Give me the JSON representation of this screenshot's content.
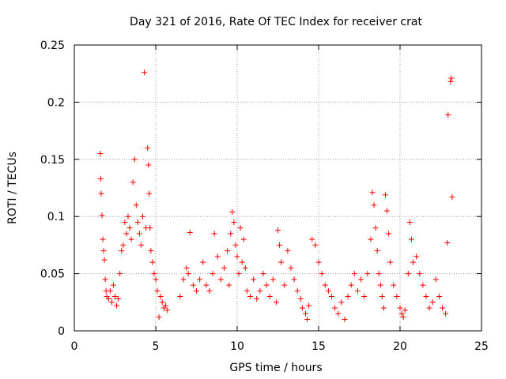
{
  "chart_data": {
    "type": "scatter",
    "title": "Day 321 of 2016, Rate Of TEC Index for receiver crat",
    "xlabel": "GPS time / hours",
    "ylabel": "ROTI / TECUs",
    "xlim": [
      0,
      25
    ],
    "ylim": [
      0,
      0.25
    ],
    "xticks": [
      "0",
      "5",
      "10",
      "15",
      "20",
      "25"
    ],
    "yticks": [
      "0",
      "0.05",
      "0.1",
      "0.15",
      "0.2",
      "0.25"
    ],
    "grid": true,
    "marker": "plus",
    "colors": {
      "marker": "#ff0000",
      "grid": "#a0a0a0",
      "axis": "#000000"
    },
    "series": [
      {
        "values": [
          [
            1.6,
            0.155
          ],
          [
            1.62,
            0.133
          ],
          [
            1.65,
            0.12
          ],
          [
            1.7,
            0.101
          ],
          [
            1.75,
            0.08
          ],
          [
            1.8,
            0.07
          ],
          [
            1.85,
            0.062
          ],
          [
            1.9,
            0.045
          ],
          [
            1.95,
            0.035
          ],
          [
            2.0,
            0.03
          ],
          [
            2.1,
            0.028
          ],
          [
            2.2,
            0.035
          ],
          [
            2.3,
            0.025
          ],
          [
            2.4,
            0.04
          ],
          [
            2.5,
            0.03
          ],
          [
            2.6,
            0.022
          ],
          [
            2.7,
            0.028
          ],
          [
            2.8,
            0.05
          ],
          [
            2.9,
            0.07
          ],
          [
            3.0,
            0.075
          ],
          [
            3.1,
            0.095
          ],
          [
            3.2,
            0.085
          ],
          [
            3.3,
            0.1
          ],
          [
            3.4,
            0.09
          ],
          [
            3.5,
            0.08
          ],
          [
            3.6,
            0.13
          ],
          [
            3.7,
            0.15
          ],
          [
            3.8,
            0.11
          ],
          [
            3.9,
            0.095
          ],
          [
            4.0,
            0.085
          ],
          [
            4.1,
            0.075
          ],
          [
            4.2,
            0.1
          ],
          [
            4.3,
            0.226
          ],
          [
            4.4,
            0.09
          ],
          [
            4.5,
            0.16
          ],
          [
            4.55,
            0.145
          ],
          [
            4.6,
            0.12
          ],
          [
            4.65,
            0.09
          ],
          [
            4.7,
            0.07
          ],
          [
            4.8,
            0.06
          ],
          [
            4.9,
            0.05
          ],
          [
            5.0,
            0.045
          ],
          [
            5.1,
            0.035
          ],
          [
            5.2,
            0.012
          ],
          [
            5.3,
            0.03
          ],
          [
            5.4,
            0.025
          ],
          [
            5.5,
            0.02
          ],
          [
            5.6,
            0.022
          ],
          [
            5.7,
            0.018
          ],
          [
            6.5,
            0.03
          ],
          [
            6.7,
            0.045
          ],
          [
            6.9,
            0.055
          ],
          [
            7.0,
            0.05
          ],
          [
            7.1,
            0.086
          ],
          [
            7.3,
            0.04
          ],
          [
            7.5,
            0.035
          ],
          [
            7.7,
            0.045
          ],
          [
            7.9,
            0.06
          ],
          [
            8.1,
            0.04
          ],
          [
            8.3,
            0.035
          ],
          [
            8.5,
            0.05
          ],
          [
            8.6,
            0.085
          ],
          [
            8.8,
            0.065
          ],
          [
            9.0,
            0.045
          ],
          [
            9.2,
            0.055
          ],
          [
            9.4,
            0.07
          ],
          [
            9.5,
            0.04
          ],
          [
            9.6,
            0.085
          ],
          [
            9.7,
            0.104
          ],
          [
            9.8,
            0.095
          ],
          [
            9.9,
            0.075
          ],
          [
            10.0,
            0.065
          ],
          [
            10.1,
            0.05
          ],
          [
            10.2,
            0.09
          ],
          [
            10.3,
            0.06
          ],
          [
            10.4,
            0.08
          ],
          [
            10.5,
            0.055
          ],
          [
            10.6,
            0.035
          ],
          [
            10.8,
            0.03
          ],
          [
            11.0,
            0.045
          ],
          [
            11.2,
            0.028
          ],
          [
            11.4,
            0.035
          ],
          [
            11.6,
            0.05
          ],
          [
            11.8,
            0.04
          ],
          [
            12.0,
            0.03
          ],
          [
            12.2,
            0.045
          ],
          [
            12.4,
            0.025
          ],
          [
            12.5,
            0.088
          ],
          [
            12.6,
            0.075
          ],
          [
            12.7,
            0.06
          ],
          [
            12.9,
            0.04
          ],
          [
            13.1,
            0.07
          ],
          [
            13.3,
            0.055
          ],
          [
            13.5,
            0.045
          ],
          [
            13.7,
            0.035
          ],
          [
            13.9,
            0.028
          ],
          [
            14.0,
            0.02
          ],
          [
            14.2,
            0.015
          ],
          [
            14.3,
            0.01
          ],
          [
            14.4,
            0.022
          ],
          [
            14.6,
            0.08
          ],
          [
            14.8,
            0.075
          ],
          [
            15.0,
            0.06
          ],
          [
            15.2,
            0.05
          ],
          [
            15.4,
            0.04
          ],
          [
            15.6,
            0.035
          ],
          [
            15.8,
            0.03
          ],
          [
            16.0,
            0.02
          ],
          [
            16.2,
            0.015
          ],
          [
            16.4,
            0.025
          ],
          [
            16.6,
            0.01
          ],
          [
            16.8,
            0.03
          ],
          [
            17.0,
            0.04
          ],
          [
            17.2,
            0.05
          ],
          [
            17.4,
            0.035
          ],
          [
            17.6,
            0.045
          ],
          [
            17.8,
            0.03
          ],
          [
            18.0,
            0.05
          ],
          [
            18.2,
            0.08
          ],
          [
            18.3,
            0.121
          ],
          [
            18.4,
            0.11
          ],
          [
            18.5,
            0.09
          ],
          [
            18.6,
            0.07
          ],
          [
            18.7,
            0.05
          ],
          [
            18.8,
            0.04
          ],
          [
            18.9,
            0.03
          ],
          [
            19.0,
            0.02
          ],
          [
            19.1,
            0.119
          ],
          [
            19.2,
            0.105
          ],
          [
            19.3,
            0.085
          ],
          [
            19.4,
            0.06
          ],
          [
            19.6,
            0.04
          ],
          [
            19.8,
            0.03
          ],
          [
            20.0,
            0.02
          ],
          [
            20.1,
            0.015
          ],
          [
            20.2,
            0.012
          ],
          [
            20.3,
            0.018
          ],
          [
            20.5,
            0.05
          ],
          [
            20.6,
            0.095
          ],
          [
            20.7,
            0.08
          ],
          [
            20.8,
            0.06
          ],
          [
            21.0,
            0.065
          ],
          [
            21.2,
            0.05
          ],
          [
            21.4,
            0.04
          ],
          [
            21.6,
            0.03
          ],
          [
            21.8,
            0.02
          ],
          [
            22.0,
            0.025
          ],
          [
            22.2,
            0.045
          ],
          [
            22.4,
            0.03
          ],
          [
            22.6,
            0.02
          ],
          [
            22.8,
            0.015
          ],
          [
            22.9,
            0.077
          ],
          [
            22.95,
            0.189
          ],
          [
            23.1,
            0.218
          ],
          [
            23.15,
            0.221
          ],
          [
            23.2,
            0.117
          ]
        ]
      }
    ]
  }
}
